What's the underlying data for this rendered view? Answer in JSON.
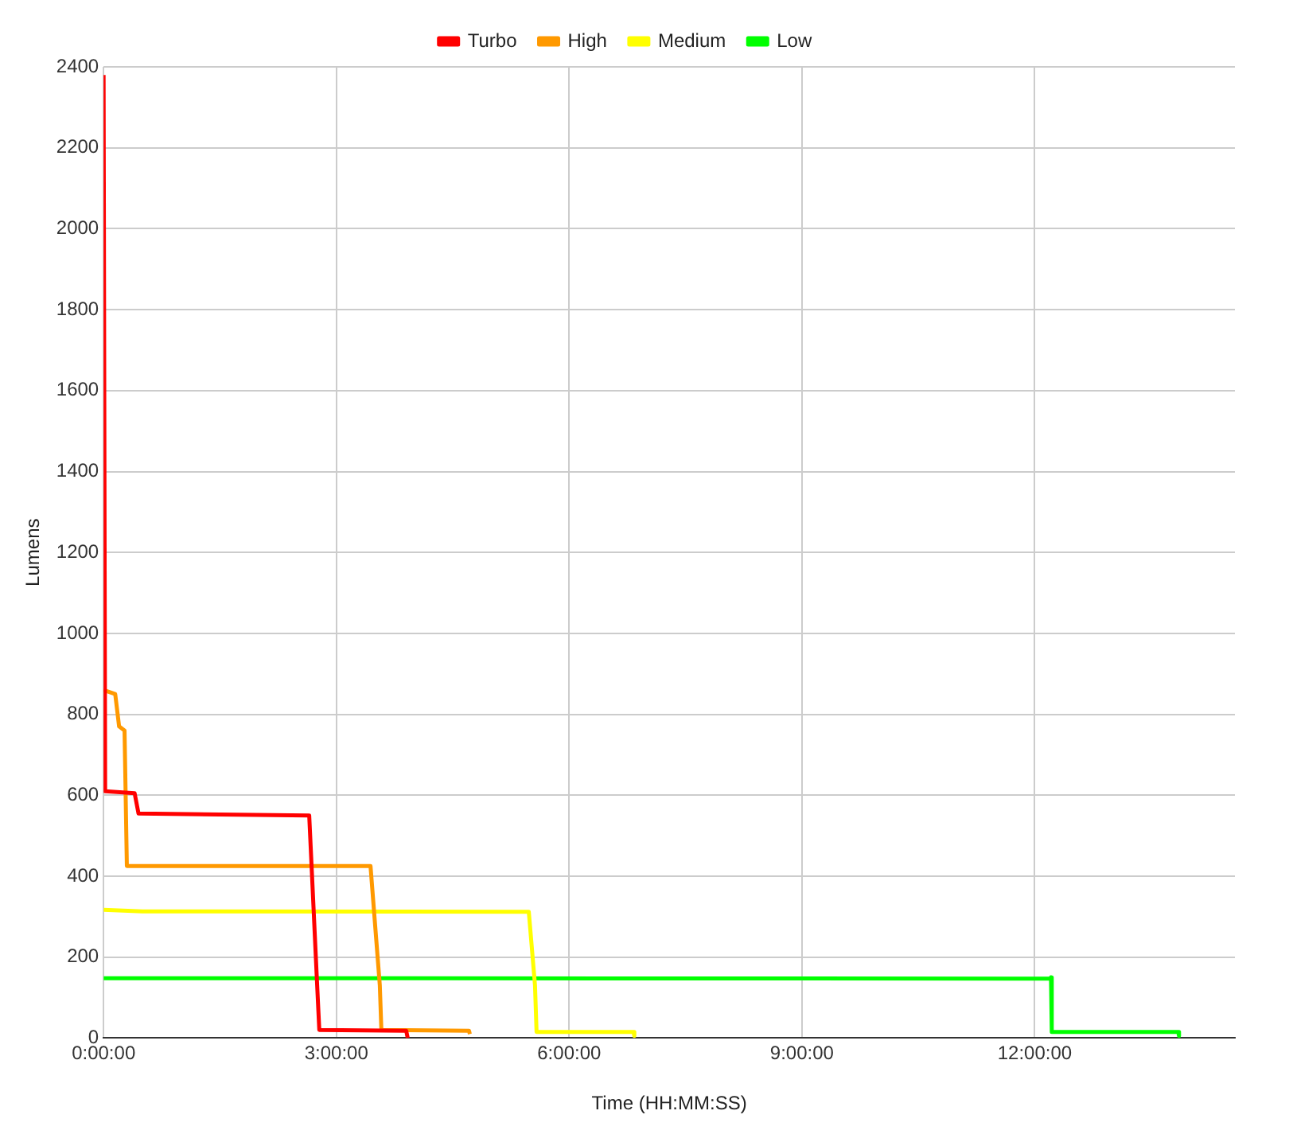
{
  "chart_data": {
    "type": "line",
    "xlabel": "Time (HH:MM:SS)",
    "ylabel": "Lumens",
    "legend": "top",
    "grid": true,
    "marker": "none",
    "line_style": "solid",
    "xlim": [
      0,
      14.58
    ],
    "xticks": [
      {
        "value": 0,
        "label": "0:00:00"
      },
      {
        "value": 3,
        "label": "3:00:00"
      },
      {
        "value": 6,
        "label": "6:00:00"
      },
      {
        "value": 9,
        "label": "9:00:00"
      },
      {
        "value": 12,
        "label": "12:00:00"
      }
    ],
    "ylim": [
      0,
      2400
    ],
    "yticks": [
      0,
      200,
      400,
      600,
      800,
      1000,
      1200,
      1400,
      1600,
      1800,
      2000,
      2200,
      2400
    ],
    "series": [
      {
        "name": "Turbo",
        "color": "#ff0000",
        "x": [
          0,
          0.02,
          0.4,
          0.45,
          2.65,
          2.75,
          2.78,
          3.9,
          3.92
        ],
        "values": [
          2380,
          610,
          605,
          555,
          550,
          140,
          20,
          18,
          0
        ]
      },
      {
        "name": "High",
        "color": "#ff9900",
        "x": [
          0,
          0.15,
          0.2,
          0.27,
          0.3,
          3.44,
          3.56,
          3.58,
          4.71,
          4.72
        ],
        "values": [
          860,
          850,
          770,
          760,
          425,
          425,
          130,
          20,
          18,
          10
        ]
      },
      {
        "name": "Medium",
        "color": "#ffff00",
        "x": [
          0,
          0.5,
          5.48,
          5.56,
          5.58,
          6.83,
          6.84
        ],
        "values": [
          317,
          313,
          312,
          130,
          15,
          15,
          5
        ]
      },
      {
        "name": "Low",
        "color": "#00ff00",
        "x": [
          0,
          12.2,
          12.21,
          12.22,
          13.85,
          13.86
        ],
        "values": [
          148,
          147,
          150,
          15,
          15,
          5
        ]
      }
    ]
  }
}
